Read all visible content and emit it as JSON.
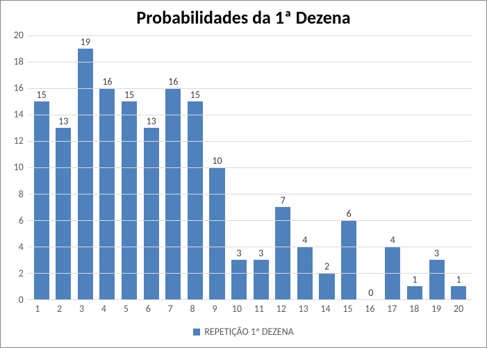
{
  "chart": {
    "type": "bar",
    "title": "Probabilidades da 1ª Dezena",
    "title_fontsize": 26,
    "categories": [
      "1",
      "2",
      "3",
      "4",
      "5",
      "6",
      "7",
      "8",
      "9",
      "10",
      "11",
      "12",
      "13",
      "14",
      "15",
      "16",
      "17",
      "18",
      "19",
      "20"
    ],
    "values": [
      15,
      13,
      19,
      16,
      15,
      13,
      16,
      15,
      10,
      3,
      3,
      7,
      4,
      2,
      6,
      0,
      4,
      1,
      3,
      1
    ],
    "bar_color": "#4f81bd",
    "background_color": "#ffffff",
    "grid_color": "#d9d9d9",
    "axis_line_color": "#888888",
    "ylim": [
      0,
      20
    ],
    "ytick_step": 2,
    "yticks": [
      0,
      2,
      4,
      6,
      8,
      10,
      12,
      14,
      16,
      18,
      20
    ],
    "axis_label_fontsize": 14,
    "datalabel_fontsize": 14,
    "datalabel_color": "#404040",
    "axis_text_color": "#595959",
    "bar_width": 0.7,
    "legend": {
      "label": "REPETIÇÃO 1ª DEZENA",
      "swatch_color": "#4f81bd",
      "fontsize": 14
    }
  }
}
